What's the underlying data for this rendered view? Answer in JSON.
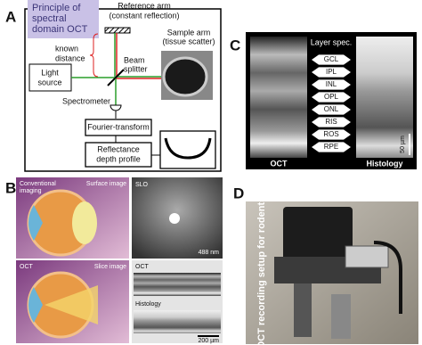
{
  "panel_a": {
    "label": "A",
    "title_lines": [
      "Principle of",
      "spectral",
      "domain OCT"
    ],
    "reference_arm": [
      "Reference arm",
      "(constant reflection)"
    ],
    "sample_arm": [
      "Sample arm",
      "(tissue scatter)"
    ],
    "known_distance": [
      "known",
      "distance"
    ],
    "beam_splitter": [
      "Beam",
      "splitter"
    ],
    "light_source": [
      "Light",
      "source"
    ],
    "spectrometer": "Spectrometer",
    "fourier_transform": "Fourier-transform",
    "reflectance": [
      "Reflectance",
      "depth profile"
    ]
  },
  "panel_b": {
    "label": "B",
    "conventional": [
      "Conventional",
      "imaging"
    ],
    "surface_image": "Surface image",
    "slo": "SLO",
    "wavelength": "488 nm",
    "oct_left": "OCT",
    "slice_image": "Slice image",
    "oct_right": "OCT",
    "histology": "Histology",
    "scale": "200 µm"
  },
  "panel_c": {
    "label": "C",
    "layer_heading": "Layer spec.",
    "layers": [
      "GCL",
      "IPL",
      "INL",
      "OPL",
      "ONL",
      "RIS",
      "ROS",
      "RPE"
    ],
    "oct": "OCT",
    "histology": "Histology",
    "scale": "50 µm"
  },
  "panel_d": {
    "label": "D",
    "caption": "OCT recording setup for rodents"
  }
}
